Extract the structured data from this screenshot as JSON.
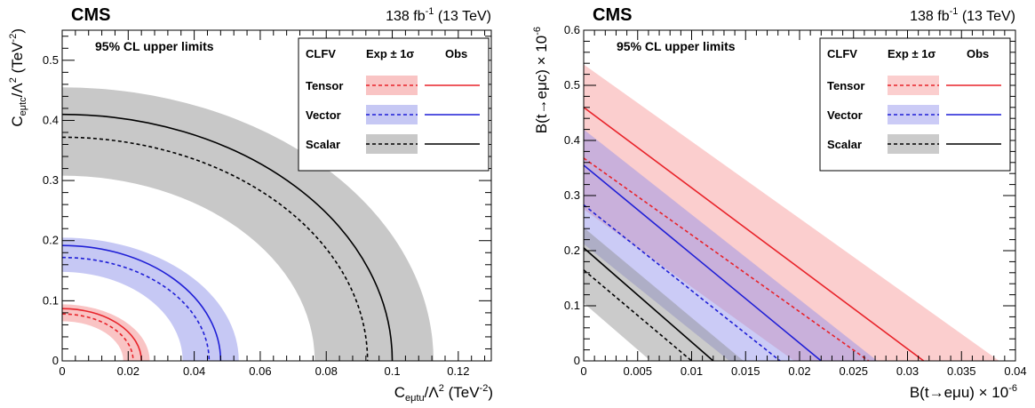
{
  "chart_data": [
    {
      "type": "area",
      "experiment": "CMS",
      "lumi": "138 fb",
      "lumi_sup": "-1",
      "energy": " (13 TeV)",
      "annotation": "95% CL upper limits",
      "xlabel": {
        "main": "C",
        "sub": "eμtu",
        "tail": "/Λ",
        "tail_sup": "2",
        "unit": " (TeV",
        "unit_sup": "-2",
        "close": ")"
      },
      "ylabel": {
        "main": "C",
        "sub": "eμtc",
        "tail": "/Λ",
        "tail_sup": "2",
        "unit": " (TeV",
        "unit_sup": "-2",
        "close": ")"
      },
      "xlim": [
        0,
        0.13
      ],
      "ylim": [
        0,
        0.55
      ],
      "xticks": [
        0,
        0.02,
        0.04,
        0.06,
        0.08,
        0.1,
        0.12
      ],
      "xtick_labels": [
        "0",
        "0.02",
        "0.04",
        "0.06",
        "0.08",
        "0.1",
        "0.12"
      ],
      "yticks": [
        0,
        0.1,
        0.2,
        0.3,
        0.4,
        0.5
      ],
      "ytick_labels": [
        "0",
        "0.1",
        "0.2",
        "0.3",
        "0.4",
        "0.5"
      ],
      "legend": {
        "placement": "top-right",
        "header": [
          "CLFV",
          "Exp ± 1σ",
          "Obs"
        ],
        "entries": [
          "Tensor",
          "Vector",
          "Scalar"
        ]
      },
      "series": [
        {
          "name": "Tensor",
          "color": "#e8232a",
          "band_color": "#f9c4c4",
          "expected": {
            "x": 0.0215,
            "y": 0.078
          },
          "band_lo": {
            "x": 0.0185,
            "y": 0.066
          },
          "band_hi": {
            "x": 0.0265,
            "y": 0.094
          },
          "observed": {
            "x": 0.024,
            "y": 0.087
          }
        },
        {
          "name": "Vector",
          "color": "#1f1fd6",
          "band_color": "#c6c8f4",
          "expected": {
            "x": 0.0445,
            "y": 0.172
          },
          "band_lo": {
            "x": 0.0365,
            "y": 0.148
          },
          "band_hi": {
            "x": 0.0535,
            "y": 0.205
          },
          "observed": {
            "x": 0.048,
            "y": 0.192
          }
        },
        {
          "name": "Scalar",
          "color": "#000000",
          "band_color": "#c8c8c8",
          "expected": {
            "x": 0.0925,
            "y": 0.372
          },
          "band_lo": {
            "x": 0.0765,
            "y": 0.308
          },
          "band_hi": {
            "x": 0.1125,
            "y": 0.455
          },
          "observed": {
            "x": 0.1,
            "y": 0.41
          }
        }
      ]
    },
    {
      "type": "area",
      "experiment": "CMS",
      "lumi": "138 fb",
      "lumi_sup": "-1",
      "energy": " (13 TeV)",
      "annotation": "95% CL upper limits",
      "xlabel": {
        "main": "B(t→eμu) × 10",
        "sup": "-6"
      },
      "ylabel": {
        "main": "B(t→eμc) × 10",
        "sup": "-6"
      },
      "xlim": [
        0,
        0.04
      ],
      "ylim": [
        0,
        0.6
      ],
      "xticks": [
        0,
        0.005,
        0.01,
        0.015,
        0.02,
        0.025,
        0.03,
        0.035,
        0.04
      ],
      "xtick_labels": [
        "0",
        "0.005",
        "0.01",
        "0.015",
        "0.02",
        "0.025",
        "0.03",
        "0.035",
        "0.04"
      ],
      "yticks": [
        0,
        0.1,
        0.2,
        0.3,
        0.4,
        0.5,
        0.6
      ],
      "ytick_labels": [
        "0",
        "0.1",
        "0.2",
        "0.3",
        "0.4",
        "0.5",
        "0.6"
      ],
      "legend": {
        "placement": "top-right",
        "header": [
          "CLFV",
          "Exp ± 1σ",
          "Obs"
        ],
        "entries": [
          "Tensor",
          "Vector",
          "Scalar"
        ]
      },
      "series": [
        {
          "name": "Tensor",
          "color": "#e8232a",
          "band_color": "rgba(248,165,165,0.55)",
          "expected": {
            "x": 0.0264,
            "y": 0.368
          },
          "band_lo": {
            "x": 0.0195,
            "y": 0.275
          },
          "band_hi": {
            "x": 0.0385,
            "y": 0.538
          },
          "observed": {
            "x": 0.0315,
            "y": 0.46
          }
        },
        {
          "name": "Vector",
          "color": "#1f1fd6",
          "band_color": "rgba(140,140,235,0.45)",
          "expected": {
            "x": 0.0182,
            "y": 0.283
          },
          "band_lo": {
            "x": 0.0135,
            "y": 0.212
          },
          "band_hi": {
            "x": 0.0272,
            "y": 0.42
          },
          "observed": {
            "x": 0.022,
            "y": 0.355
          }
        },
        {
          "name": "Scalar",
          "color": "#000000",
          "band_color": "rgba(140,140,140,0.45)",
          "expected": {
            "x": 0.01,
            "y": 0.165
          },
          "band_lo": {
            "x": 0.0062,
            "y": 0.105
          },
          "band_hi": {
            "x": 0.0148,
            "y": 0.242
          },
          "observed": {
            "x": 0.012,
            "y": 0.205
          }
        }
      ]
    }
  ]
}
